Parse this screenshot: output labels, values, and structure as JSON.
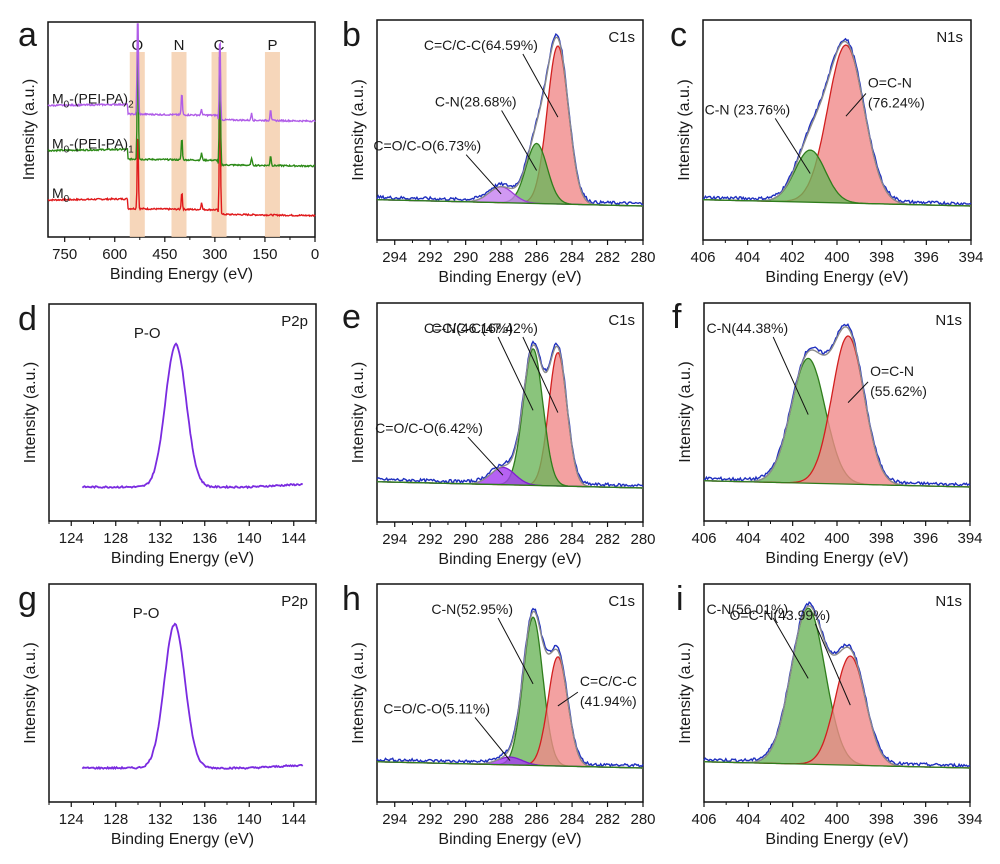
{
  "figure": {
    "description": "XPS survey and high-resolution spectra (9 panels a-i)"
  },
  "chart_data": [
    {
      "panel": "a",
      "type": "line",
      "title": "",
      "xlabel": "Binding Energy (eV)",
      "ylabel": "Intensity (a.u.)",
      "xlim": [
        800,
        0
      ],
      "x_ticks": [
        "750",
        "600",
        "450",
        "300",
        "150",
        "0"
      ],
      "x_tick_values": [
        750,
        600,
        450,
        300,
        150,
        0
      ],
      "highlight_bands": [
        {
          "label": "O",
          "range": [
            555,
            510
          ],
          "color": "#f5cfae"
        },
        {
          "label": "N",
          "range": [
            430,
            385
          ],
          "color": "#f5cfae"
        },
        {
          "label": "C",
          "range": [
            310,
            265
          ],
          "color": "#f5cfae"
        },
        {
          "label": "P",
          "range": [
            150,
            105
          ],
          "color": "#f5cfae"
        }
      ],
      "series": [
        {
          "name": "M0",
          "label_main": "M",
          "label_sub": "0",
          "label_tail": "",
          "color": "#e0191b",
          "offset": 0.0,
          "peaks": [
            [
              531,
              0.55
            ],
            [
              399,
              0.12
            ],
            [
              285,
              0.9
            ],
            [
              340,
              0.05
            ]
          ],
          "step": [
            [
              560,
              0.05
            ],
            [
              290,
              0.08
            ]
          ]
        },
        {
          "name": "M0-(PEI-PA)1",
          "label_main": "M",
          "label_sub": "0",
          "label_tail": "-(PEI-PA)",
          "label_tail_sub": "1",
          "color": "#2c8a17",
          "offset": 0.33,
          "peaks": [
            [
              531,
              0.9
            ],
            [
              399,
              0.15
            ],
            [
              285,
              0.85
            ],
            [
              340,
              0.05
            ],
            [
              190,
              0.05
            ],
            [
              133,
              0.07
            ]
          ],
          "step": [
            [
              560,
              0.07
            ],
            [
              290,
              0.05
            ]
          ]
        },
        {
          "name": "M0-(PEI-PA)2",
          "label_main": "M",
          "label_sub": "0",
          "label_tail": "-(PEI-PA)",
          "label_tail_sub": "2",
          "color": "#b05de8",
          "offset": 0.63,
          "peaks": [
            [
              531,
              1.1
            ],
            [
              399,
              0.15
            ],
            [
              285,
              0.6
            ],
            [
              340,
              0.04
            ],
            [
              190,
              0.05
            ],
            [
              133,
              0.08
            ]
          ],
          "step": [
            [
              560,
              0.08
            ],
            [
              290,
              0.05
            ]
          ]
        }
      ]
    },
    {
      "panel": "b",
      "type": "area",
      "core_level": "C1s",
      "xlabel": "Binding Energy (eV)",
      "ylabel": "Intensity (a.u.)",
      "xlim": [
        295,
        280
      ],
      "x_ticks": [
        "294",
        "292",
        "290",
        "288",
        "286",
        "284",
        "282",
        "280"
      ],
      "x_tick_values": [
        294,
        292,
        290,
        288,
        286,
        284,
        282,
        280
      ],
      "components": [
        {
          "name": "C=C/C-C",
          "percent": 64.59,
          "label": "C=C/C-C(64.59%)",
          "center": 284.8,
          "height": 1.0,
          "fwhm": 1.4,
          "fill": "#f08a8a",
          "stroke": "#d21f1f"
        },
        {
          "name": "C-N",
          "percent": 28.68,
          "label": "C-N(28.68%)",
          "center": 286.0,
          "height": 0.38,
          "fwhm": 1.4,
          "fill": "#6db55b",
          "stroke": "#2f7d1c"
        },
        {
          "name": "C=O/C-O",
          "percent": 6.73,
          "label": "C=O/C-O(6.73%)",
          "center": 288.0,
          "height": 0.1,
          "fwhm": 1.6,
          "fill": "#c680f0",
          "stroke": "#9b3fd6"
        }
      ]
    },
    {
      "panel": "c",
      "type": "area",
      "core_level": "N1s",
      "xlabel": "Binding Energy (eV)",
      "ylabel": "Intensity (a.u.)",
      "xlim": [
        406,
        394
      ],
      "x_ticks": [
        "406",
        "404",
        "402",
        "400",
        "398",
        "396",
        "394"
      ],
      "x_tick_values": [
        406,
        404,
        402,
        400,
        398,
        396,
        394
      ],
      "components": [
        {
          "name": "O=C-N",
          "percent": 76.24,
          "label_line1": "O=C-N",
          "label_line2": "(76.24%)",
          "center": 399.6,
          "height": 1.0,
          "fwhm": 1.9,
          "fill": "#f08a8a",
          "stroke": "#d21f1f"
        },
        {
          "name": "C-N",
          "percent": 23.76,
          "label": "C-N (23.76%)",
          "center": 401.2,
          "height": 0.33,
          "fwhm": 1.6,
          "fill": "#6db55b",
          "stroke": "#2f7d1c"
        }
      ]
    },
    {
      "panel": "d",
      "type": "line",
      "core_level": "P2p",
      "annotation": "P-O",
      "xlabel": "Binding Energy (eV)",
      "ylabel": "Intensity (a.u.)",
      "xlim": [
        122,
        146
      ],
      "x_ticks": [
        "124",
        "128",
        "132",
        "136",
        "140",
        "144"
      ],
      "x_tick_values": [
        124,
        128,
        132,
        136,
        140,
        144
      ],
      "series": [
        {
          "name": "P2p",
          "color": "#7a2be0",
          "center": 133.4,
          "height": 1.0,
          "fwhm": 2.2,
          "x_range": [
            125,
            144.8
          ]
        }
      ]
    },
    {
      "panel": "e",
      "type": "area",
      "core_level": "C1s",
      "xlabel": "Binding Energy (eV)",
      "ylabel": "Intensity (a.u.)",
      "xlim": [
        295,
        280
      ],
      "x_ticks": [
        "294",
        "292",
        "290",
        "288",
        "286",
        "284",
        "282",
        "280"
      ],
      "x_tick_values": [
        294,
        292,
        290,
        288,
        286,
        284,
        282,
        280
      ],
      "components": [
        {
          "name": "C=C/C-C",
          "percent": 47.42,
          "label": "C=C/C-C(47.42%)",
          "center": 284.8,
          "height": 0.85,
          "fwhm": 1.2,
          "fill": "#f08a8a",
          "stroke": "#d21f1f"
        },
        {
          "name": "C-N",
          "percent": 46.16,
          "label": "C-N(46.16%)",
          "center": 286.2,
          "height": 0.87,
          "fwhm": 1.3,
          "fill": "#6db55b",
          "stroke": "#2f7d1c"
        },
        {
          "name": "C=O/C-O",
          "percent": 6.42,
          "label": "C=O/C-O(6.42%)",
          "center": 287.9,
          "height": 0.11,
          "fwhm": 1.6,
          "fill": "#a43bf0",
          "stroke": "#7f1fd0"
        }
      ]
    },
    {
      "panel": "f",
      "type": "area",
      "core_level": "N1s",
      "xlabel": "Binding Energy (eV)",
      "ylabel": "Intensity (a.u.)",
      "xlim": [
        406,
        394
      ],
      "x_ticks": [
        "406",
        "404",
        "402",
        "400",
        "398",
        "396",
        "394"
      ],
      "x_tick_values": [
        406,
        404,
        402,
        400,
        398,
        396,
        394
      ],
      "components": [
        {
          "name": "C-N",
          "percent": 44.38,
          "label": "C-N(44.38%)",
          "center": 401.3,
          "height": 0.8,
          "fwhm": 1.8,
          "fill": "#6db55b",
          "stroke": "#2f7d1c"
        },
        {
          "name": "O=C-N",
          "percent": 55.62,
          "label_line1": "O=C-N",
          "label_line2": "(55.62%)",
          "center": 399.5,
          "height": 0.95,
          "fwhm": 1.7,
          "fill": "#f08a8a",
          "stroke": "#d21f1f"
        }
      ]
    },
    {
      "panel": "g",
      "type": "line",
      "core_level": "P2p",
      "annotation": "P-O",
      "xlabel": "Binding Energy (eV)",
      "ylabel": "Intensity (a.u.)",
      "xlim": [
        122,
        146
      ],
      "x_ticks": [
        "124",
        "128",
        "132",
        "136",
        "140",
        "144"
      ],
      "x_tick_values": [
        124,
        128,
        132,
        136,
        140,
        144
      ],
      "series": [
        {
          "name": "P2p",
          "color": "#7a2be0",
          "center": 133.3,
          "height": 1.0,
          "fwhm": 2.2,
          "x_range": [
            125,
            144.8
          ]
        }
      ]
    },
    {
      "panel": "h",
      "type": "area",
      "core_level": "C1s",
      "xlabel": "Binding Energy (eV)",
      "ylabel": "Intensity (a.u.)",
      "xlim": [
        295,
        280
      ],
      "x_ticks": [
        "294",
        "292",
        "290",
        "288",
        "286",
        "284",
        "282",
        "280"
      ],
      "x_tick_values": [
        294,
        292,
        290,
        288,
        286,
        284,
        282,
        280
      ],
      "components": [
        {
          "name": "C-N",
          "percent": 52.95,
          "label": "C-N(52.95%)",
          "center": 286.2,
          "height": 0.95,
          "fwhm": 1.3,
          "fill": "#6db55b",
          "stroke": "#2f7d1c"
        },
        {
          "name": "C=C/C-C",
          "percent": 41.94,
          "label_line1": "C=C/C-C",
          "label_line2": "(41.94%)",
          "center": 284.8,
          "height": 0.7,
          "fwhm": 1.3,
          "fill": "#f08a8a",
          "stroke": "#d21f1f"
        },
        {
          "name": "C=O/C-O",
          "percent": 5.11,
          "label": "C=O/C-O(5.11%)",
          "center": 287.5,
          "height": 0.05,
          "fwhm": 1.6,
          "fill": "#a43bf0",
          "stroke": "#7f1fd0"
        }
      ]
    },
    {
      "panel": "i",
      "type": "area",
      "core_level": "N1s",
      "xlabel": "Binding Energy (eV)",
      "ylabel": "Intensity (a.u.)",
      "xlim": [
        406,
        394
      ],
      "x_ticks": [
        "406",
        "404",
        "402",
        "400",
        "398",
        "396",
        "394"
      ],
      "x_tick_values": [
        406,
        404,
        402,
        400,
        398,
        396,
        394
      ],
      "components": [
        {
          "name": "C-N",
          "percent": 56.01,
          "label": "C-N(56.01%)",
          "center": 401.3,
          "height": 1.0,
          "fwhm": 1.8,
          "fill": "#6db55b",
          "stroke": "#2f7d1c"
        },
        {
          "name": "O=C-N",
          "percent": 43.99,
          "label": "O=C-N(43.99%)",
          "center": 399.4,
          "height": 0.7,
          "fwhm": 1.6,
          "fill": "#f08a8a",
          "stroke": "#d21f1f"
        }
      ]
    }
  ]
}
